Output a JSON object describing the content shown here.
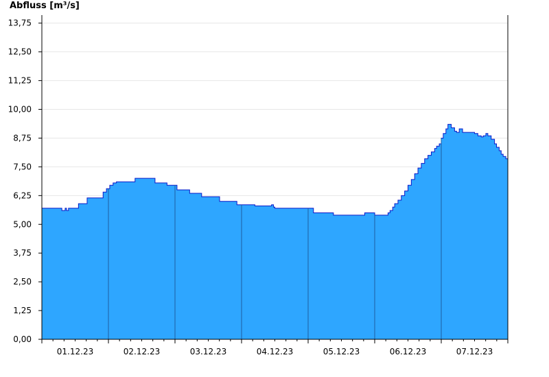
{
  "chart_data": {
    "type": "area",
    "ylabel": "Abfluss [m³/s]",
    "ylim": [
      0,
      14.1
    ],
    "grid": true,
    "colors": {
      "fill": "#2ea6ff",
      "line": "#0a18c8",
      "grid": "#e6e6e6",
      "day_separator": "#1f5fa0",
      "axis": "#000000"
    },
    "yticks": [
      {
        "value": 0,
        "label": "0,00"
      },
      {
        "value": 1.25,
        "label": "1,25"
      },
      {
        "value": 2.5,
        "label": "2,50"
      },
      {
        "value": 3.75,
        "label": "3,75"
      },
      {
        "value": 5,
        "label": "5,00"
      },
      {
        "value": 6.25,
        "label": "6,25"
      },
      {
        "value": 7.5,
        "label": "7,50"
      },
      {
        "value": 8.75,
        "label": "8,75"
      },
      {
        "value": 10,
        "label": "10,00"
      },
      {
        "value": 11.25,
        "label": "11,25"
      },
      {
        "value": 12.5,
        "label": "12,50"
      },
      {
        "value": 13.75,
        "label": "13,75"
      }
    ],
    "xlim": [
      0,
      7
    ],
    "xticks": [
      {
        "value": 0.5,
        "label": "01.12.23"
      },
      {
        "value": 1.5,
        "label": "02.12.23"
      },
      {
        "value": 2.5,
        "label": "03.12.23"
      },
      {
        "value": 3.5,
        "label": "04.12.23"
      },
      {
        "value": 4.5,
        "label": "05.12.23"
      },
      {
        "value": 5.5,
        "label": "06.12.23"
      },
      {
        "value": 6.5,
        "label": "07.12.23"
      }
    ],
    "day_boundaries": [
      1,
      2,
      3,
      4,
      5,
      6
    ],
    "series": [
      {
        "x": [
          0,
          0.28,
          0.3,
          0.33,
          0.35,
          0.37,
          0.4,
          0.42,
          0.55,
          0.68,
          0.92,
          0.97,
          1.02,
          1.07,
          1.12,
          1.18,
          1.4,
          1.45,
          1.7,
          1.88,
          2.03,
          2.22,
          2.4,
          2.67,
          2.93,
          3.2,
          3.45,
          3.48,
          3.5,
          4.08,
          4.38,
          4.8,
          4.85,
          5.0,
          5.17,
          5.2,
          5.23,
          5.27,
          5.3,
          5.35,
          5.4,
          5.45,
          5.5,
          5.55,
          5.6,
          5.65,
          5.7,
          5.75,
          5.8,
          5.85,
          5.9,
          5.93,
          5.97,
          6.0,
          6.03,
          6.07,
          6.1,
          6.15,
          6.2,
          6.23,
          6.27,
          6.32,
          6.5,
          6.55,
          6.6,
          6.63,
          6.67,
          6.7,
          6.75,
          6.8,
          6.83,
          6.87,
          6.9,
          6.93,
          6.97,
          7.0
        ],
        "y": [
          5.7,
          5.7,
          5.6,
          5.6,
          5.7,
          5.6,
          5.7,
          5.7,
          5.9,
          6.15,
          6.4,
          6.55,
          6.7,
          6.8,
          6.85,
          6.85,
          7.0,
          7.0,
          6.8,
          6.7,
          6.5,
          6.35,
          6.2,
          6.0,
          5.85,
          5.8,
          5.85,
          5.75,
          5.7,
          5.5,
          5.4,
          5.4,
          5.5,
          5.4,
          5.4,
          5.5,
          5.6,
          5.75,
          5.9,
          6.05,
          6.25,
          6.45,
          6.7,
          6.95,
          7.2,
          7.45,
          7.65,
          7.85,
          8.0,
          8.15,
          8.3,
          8.4,
          8.5,
          8.75,
          8.95,
          9.15,
          9.35,
          9.2,
          9.05,
          9.0,
          9.15,
          9.0,
          8.95,
          8.85,
          8.8,
          8.85,
          8.95,
          8.85,
          8.7,
          8.5,
          8.35,
          8.2,
          8.05,
          7.95,
          7.85,
          7.85
        ]
      }
    ]
  }
}
